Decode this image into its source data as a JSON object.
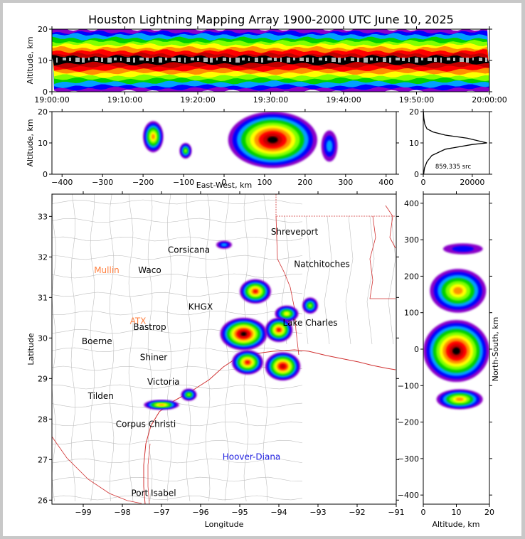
{
  "title": "Houston Lightning Mapping Array 1900-2000 UTC June 10, 2025",
  "colors": {
    "scale": [
      "#8a00c8",
      "#0000ff",
      "#00a0ff",
      "#00d000",
      "#80ff00",
      "#ffff00",
      "#ff9000",
      "#ff0000",
      "#c00000",
      "#000000",
      "#b4b4b4",
      "#ffffff"
    ],
    "county_lines": "#bebebe",
    "state_lines": "#d03030",
    "coast": "#d03030"
  },
  "chart_data": [
    {
      "id": "time-height",
      "type": "heatmap",
      "xlabel": "",
      "ylabel": "Altitude, km",
      "x_ticks": [
        "19:00:00",
        "19:10:00",
        "19:20:00",
        "19:30:00",
        "19:40:00",
        "19:50:00",
        "20:00:00"
      ],
      "y_ticks": [
        "0",
        "10",
        "20"
      ],
      "ylim": [
        0,
        20
      ],
      "peak_altitude_km": 10
    },
    {
      "id": "ew-height",
      "type": "heatmap",
      "xlabel": "East-West, km",
      "ylabel": "Altitude, km",
      "x_ticks": [
        "−400",
        "−300",
        "−200",
        "−100",
        "0",
        "100",
        "200",
        "300",
        "400"
      ],
      "y_ticks": [
        "0",
        "10",
        "20"
      ],
      "xlim": [
        -425,
        425
      ],
      "ylim": [
        0,
        20
      ],
      "cells": [
        {
          "x": [
            -200,
            -150
          ],
          "z": [
            7,
            17
          ],
          "intensity": 6
        },
        {
          "x": [
            -110,
            -80
          ],
          "z": [
            5,
            10
          ],
          "intensity": 4
        },
        {
          "x": [
            10,
            230
          ],
          "z": [
            2,
            20
          ],
          "intensity": 9
        },
        {
          "x": [
            240,
            280
          ],
          "z": [
            4,
            14
          ],
          "intensity": 2
        }
      ]
    },
    {
      "id": "altitude-histogram",
      "type": "line",
      "annotation": "859,335 src",
      "x_ticks": [
        "0",
        "20000"
      ],
      "y_ticks": [
        "0",
        "10",
        "20"
      ],
      "xlim": [
        0,
        27000
      ],
      "ylim": [
        0,
        20
      ],
      "points": [
        [
          150,
          0
        ],
        [
          500,
          2
        ],
        [
          1500,
          4
        ],
        [
          3500,
          6
        ],
        [
          9000,
          8
        ],
        [
          20000,
          9.5
        ],
        [
          26000,
          10
        ],
        [
          18000,
          11.5
        ],
        [
          9000,
          12.5
        ],
        [
          4000,
          13.5
        ],
        [
          1500,
          14.5
        ],
        [
          600,
          16
        ],
        [
          200,
          18
        ],
        [
          60,
          20
        ]
      ]
    },
    {
      "id": "plan-view",
      "type": "heatmap",
      "xlabel": "Longitude",
      "ylabel": "Latitude",
      "x_ticks": [
        "−99",
        "−98",
        "−97",
        "−96",
        "−95",
        "−94",
        "−93",
        "−92",
        "−91"
      ],
      "y_ticks": [
        "26",
        "27",
        "28",
        "29",
        "30",
        "31",
        "32",
        "33"
      ],
      "xlim": [
        -99.8,
        -91
      ],
      "ylim": [
        25.9,
        33.55
      ],
      "cities": [
        {
          "name": "Shreveport",
          "lon": -93.6,
          "lat": 32.55,
          "color": "#000000"
        },
        {
          "name": "Corsicana",
          "lon": -96.3,
          "lat": 32.1,
          "color": "#000000"
        },
        {
          "name": "Natchitoches",
          "lon": -92.9,
          "lat": 31.75,
          "color": "#000000"
        },
        {
          "name": "Mullin",
          "lon": -98.4,
          "lat": 31.6,
          "color": "#ff8040"
        },
        {
          "name": "Waco",
          "lon": -97.3,
          "lat": 31.6,
          "color": "#000000"
        },
        {
          "name": "KHGX",
          "lon": -96.0,
          "lat": 30.7,
          "color": "#000000"
        },
        {
          "name": "ATX",
          "lon": -97.6,
          "lat": 30.35,
          "color": "#ff8040"
        },
        {
          "name": "Bastrop",
          "lon": -97.3,
          "lat": 30.2,
          "color": "#000000"
        },
        {
          "name": "Lake Charles",
          "lon": -93.2,
          "lat": 30.3,
          "color": "#000000"
        },
        {
          "name": "Boerne",
          "lon": -98.65,
          "lat": 29.85,
          "color": "#000000"
        },
        {
          "name": "Shiner",
          "lon": -97.2,
          "lat": 29.45,
          "color": "#000000"
        },
        {
          "name": "Victoria",
          "lon": -96.95,
          "lat": 28.85,
          "color": "#000000"
        },
        {
          "name": "Tilden",
          "lon": -98.55,
          "lat": 28.5,
          "color": "#000000"
        },
        {
          "name": "Corpus Christi",
          "lon": -97.4,
          "lat": 27.8,
          "color": "#000000"
        },
        {
          "name": "Hoover-Diana",
          "lon": -94.7,
          "lat": 27.0,
          "color": "#2020e0"
        },
        {
          "name": "Port Isabel",
          "lon": -97.2,
          "lat": 26.1,
          "color": "#000000"
        }
      ],
      "cells": [
        {
          "lon": -95.4,
          "lat": 32.3,
          "rx": 0.2,
          "ry": 0.1,
          "intensity": 2
        },
        {
          "lon": -94.6,
          "lat": 31.15,
          "rx": 0.4,
          "ry": 0.3,
          "intensity": 7
        },
        {
          "lon": -93.8,
          "lat": 30.6,
          "rx": 0.3,
          "ry": 0.2,
          "intensity": 5
        },
        {
          "lon": -93.2,
          "lat": 30.8,
          "rx": 0.2,
          "ry": 0.2,
          "intensity": 4
        },
        {
          "lon": -94.9,
          "lat": 30.1,
          "rx": 0.6,
          "ry": 0.4,
          "intensity": 9
        },
        {
          "lon": -94.0,
          "lat": 30.2,
          "rx": 0.35,
          "ry": 0.3,
          "intensity": 7
        },
        {
          "lon": -94.8,
          "lat": 29.4,
          "rx": 0.4,
          "ry": 0.3,
          "intensity": 7
        },
        {
          "lon": -93.9,
          "lat": 29.3,
          "rx": 0.45,
          "ry": 0.35,
          "intensity": 8
        },
        {
          "lon": -96.3,
          "lat": 28.6,
          "rx": 0.2,
          "ry": 0.15,
          "intensity": 4
        },
        {
          "lon": -97.0,
          "lat": 28.35,
          "rx": 0.45,
          "ry": 0.12,
          "intensity": 6
        }
      ]
    },
    {
      "id": "ns-height",
      "type": "heatmap",
      "xlabel": "Altitude, km",
      "ylabel": "North-South, km",
      "x_ticks": [
        "0",
        "10",
        "20"
      ],
      "y_ticks": [
        "−400",
        "−300",
        "−200",
        "−100",
        "0",
        "100",
        "200",
        "300",
        "400"
      ],
      "xlim": [
        0,
        20
      ],
      "ylim": [
        -425,
        425
      ],
      "cells": [
        {
          "y": [
            260,
            290
          ],
          "z": [
            6,
            18
          ],
          "intensity": 1
        },
        {
          "y": [
            100,
            220
          ],
          "z": [
            2,
            19
          ],
          "intensity": 6
        },
        {
          "y": [
            -90,
            80
          ],
          "z": [
            0,
            20
          ],
          "intensity": 9
        },
        {
          "y": [
            -165,
            -110
          ],
          "z": [
            4,
            18
          ],
          "intensity": 6
        }
      ]
    }
  ]
}
